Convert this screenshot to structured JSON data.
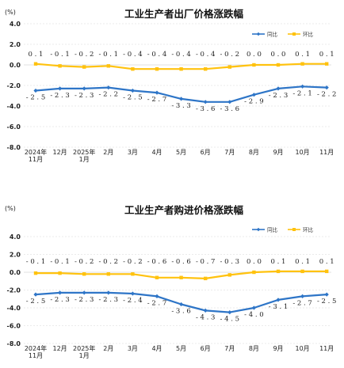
{
  "chart_data": [
    {
      "type": "line",
      "title": "工业生产者出厂价格涨跌幅",
      "unit": "(%)",
      "categories": [
        [
          "2024年",
          "11月"
        ],
        [
          "12月"
        ],
        [
          "2025年",
          "1月"
        ],
        [
          "2月"
        ],
        [
          "3月"
        ],
        [
          "4月"
        ],
        [
          "5月"
        ],
        [
          "6月"
        ],
        [
          "7月"
        ],
        [
          "8月"
        ],
        [
          "9月"
        ],
        [
          "10月"
        ],
        [
          "11月"
        ]
      ],
      "series": [
        {
          "name": "同比",
          "color": "#2e75c7",
          "values": [
            -2.5,
            -2.3,
            -2.3,
            -2.2,
            -2.5,
            -2.7,
            -3.3,
            -3.6,
            -3.6,
            -2.9,
            -2.3,
            -2.1,
            -2.2
          ]
        },
        {
          "name": "环比",
          "color": "#ffc20e",
          "values": [
            0.1,
            -0.1,
            -0.2,
            -0.1,
            -0.4,
            -0.4,
            -0.4,
            -0.4,
            -0.2,
            0.0,
            0.0,
            0.1,
            0.1
          ]
        }
      ],
      "yticks": [
        "4.0",
        "2.0",
        "0.0",
        "-2.0",
        "-4.0",
        "-6.0",
        "-8.0"
      ],
      "ylim": [
        -8,
        4
      ],
      "grid": true,
      "legend": "top-right",
      "labels_yoy": [
        "-2.5",
        "-2.3",
        "-2.3",
        "-2.2",
        "-2.5",
        "-2.7",
        "-3.3",
        "-3.6",
        "-3.6",
        "-2.9",
        "-2.3",
        "-2.1",
        "-2.2"
      ],
      "labels_mom": [
        "0.1",
        "-0.1",
        "-0.2",
        "-0.1",
        "-0.4",
        "-0.4",
        "-0.4",
        "-0.4",
        "-0.2",
        "0.0",
        "0.0",
        "0.1",
        "0.1"
      ]
    },
    {
      "type": "line",
      "title": "工业生产者购进价格涨跌幅",
      "unit": "(%)",
      "categories": [
        [
          "2024年",
          "11月"
        ],
        [
          "12月"
        ],
        [
          "2025年",
          "1月"
        ],
        [
          "2月"
        ],
        [
          "3月"
        ],
        [
          "4月"
        ],
        [
          "5月"
        ],
        [
          "6月"
        ],
        [
          "7月"
        ],
        [
          "8月"
        ],
        [
          "9月"
        ],
        [
          "10月"
        ],
        [
          "11月"
        ]
      ],
      "series": [
        {
          "name": "同比",
          "color": "#2e75c7",
          "values": [
            -2.5,
            -2.3,
            -2.3,
            -2.3,
            -2.4,
            -2.7,
            -3.6,
            -4.3,
            -4.5,
            -4.0,
            -3.1,
            -2.7,
            -2.5
          ]
        },
        {
          "name": "环比",
          "color": "#ffc20e",
          "values": [
            -0.1,
            -0.1,
            -0.2,
            -0.2,
            -0.2,
            -0.6,
            -0.6,
            -0.7,
            -0.3,
            0.0,
            0.1,
            0.1,
            0.1
          ]
        }
      ],
      "yticks": [
        "4.0",
        "2.0",
        "0.0",
        "-2.0",
        "-4.0",
        "-6.0",
        "-8.0"
      ],
      "ylim": [
        -8,
        4
      ],
      "grid": true,
      "legend": "top-right",
      "labels_yoy": [
        "-2.5",
        "-2.3",
        "-2.3",
        "-2.3",
        "-2.4",
        "-2.7",
        "-3.6",
        "-4.3",
        "-4.5",
        "-4.0",
        "-3.1",
        "-2.7",
        "-2.5"
      ],
      "labels_mom": [
        "-0.1",
        "-0.1",
        "-0.2",
        "-0.2",
        "-0.2",
        "-0.6",
        "-0.6",
        "-0.7",
        "-0.3",
        "0.0",
        "0.1",
        "0.1",
        "0.1"
      ]
    }
  ]
}
